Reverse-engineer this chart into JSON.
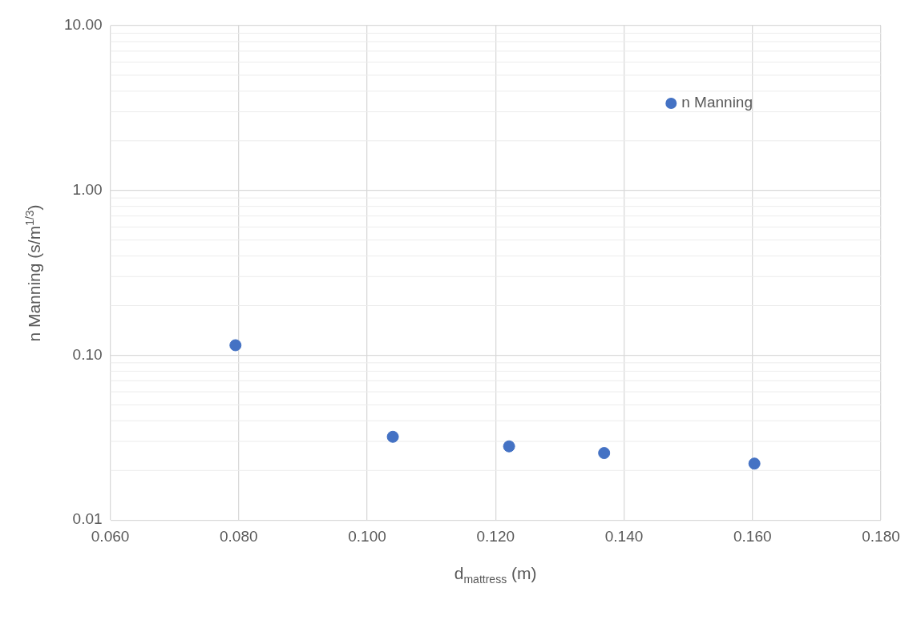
{
  "chart_data": {
    "type": "scatter",
    "xlabel": "d$_{mattress}$ (m)",
    "ylabel": "n Manning (s/m$^{1/3}$)",
    "x": [
      0.0795,
      0.104,
      0.1221,
      0.1369,
      0.1603
    ],
    "series": [
      {
        "name": "n Manning",
        "color": "#4472c4",
        "values": [
          0.115,
          0.032,
          0.028,
          0.0255,
          0.022
        ]
      }
    ],
    "xlim": [
      0.06,
      0.18
    ],
    "xticks": [
      {
        "value": 0.06,
        "label": "0.060"
      },
      {
        "value": 0.08,
        "label": "0.080"
      },
      {
        "value": 0.1,
        "label": "0.100"
      },
      {
        "value": 0.12,
        "label": "0.120"
      },
      {
        "value": 0.14,
        "label": "0.140"
      },
      {
        "value": 0.16,
        "label": "0.160"
      },
      {
        "value": 0.18,
        "label": "0.180"
      }
    ],
    "ylim": [
      0.01,
      10
    ],
    "yticks": [
      {
        "value": 0.01,
        "label": "0.01"
      },
      {
        "value": 0.1,
        "label": "0.10"
      },
      {
        "value": 1,
        "label": "1.00"
      },
      {
        "value": 10,
        "label": "10.00"
      }
    ],
    "log": "y",
    "grid": true,
    "legend": "top right",
    "marker": "circle"
  }
}
